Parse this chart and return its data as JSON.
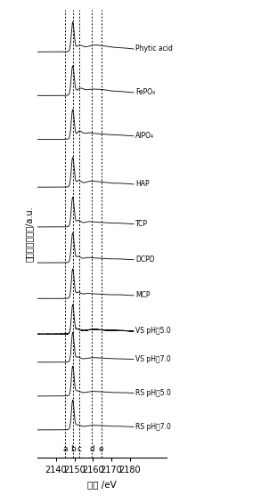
{
  "xmin": 2130,
  "xmax": 2182,
  "xlim_right": 2200,
  "xticks": [
    2140,
    2150,
    2160,
    2170,
    2180
  ],
  "xlabel": "能量 /eV",
  "ylabel": "归一化的吸光度/a.u.",
  "vlines": [
    2145.0,
    2149.0,
    2152.5,
    2159.5,
    2164.5
  ],
  "vline_labels": [
    "a",
    "b",
    "c",
    "d",
    "e"
  ],
  "spectra_labels": [
    "Phytic acid",
    "FePO₄",
    "AlPO₄",
    "HAP",
    "TCP",
    "DCPD",
    "MCP",
    "VS pH～5.0",
    "VS pH～7.0",
    "RS pH～5.0",
    "RS pH～7.0"
  ],
  "offsets": [
    9.5,
    8.4,
    7.3,
    6.1,
    5.1,
    4.2,
    3.3,
    2.4,
    1.7,
    0.85,
    0.0
  ],
  "scale": 0.75,
  "background_color": "#ffffff",
  "line_color": "#111111",
  "figsize": [
    3.02,
    5.65
  ],
  "dpi": 100
}
